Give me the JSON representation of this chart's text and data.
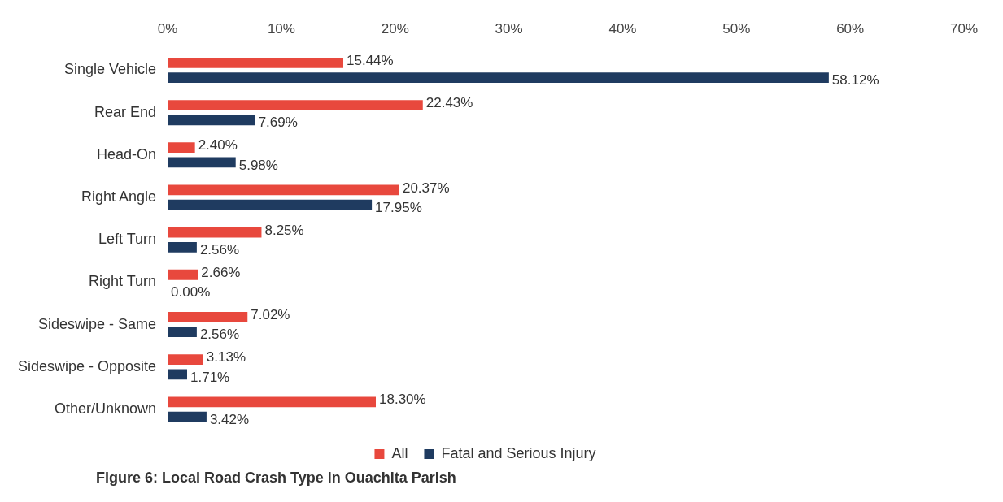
{
  "chart_data": {
    "type": "bar",
    "orientation": "horizontal",
    "categories": [
      "Single Vehicle",
      "Rear End",
      "Head-On",
      "Right Angle",
      "Left Turn",
      "Right Turn",
      "Sideswipe - Same",
      "Sideswipe - Opposite",
      "Other/Unknown"
    ],
    "series": [
      {
        "name": "All",
        "color": "#e8483d",
        "values": [
          15.44,
          22.43,
          2.4,
          20.37,
          8.25,
          2.66,
          7.02,
          3.13,
          18.3
        ],
        "value_labels": [
          "15.44%",
          "22.43%",
          "2.40%",
          "20.37%",
          "8.25%",
          "2.66%",
          "7.02%",
          "3.13%",
          "18.30%"
        ]
      },
      {
        "name": "Fatal and Serious Injury",
        "color": "#1f3b60",
        "values": [
          58.12,
          7.69,
          5.98,
          17.95,
          2.56,
          0,
          2.56,
          1.71,
          3.42
        ],
        "value_labels": [
          "58.12%",
          "7.69%",
          "5.98%",
          "17.95%",
          "2.56%",
          "0.00%",
          "2.56%",
          "1.71%",
          "3.42%"
        ]
      }
    ],
    "xlim": [
      0,
      70
    ],
    "xticks": [
      {
        "value": 0,
        "label": "0%"
      },
      {
        "value": 10,
        "label": "10%"
      },
      {
        "value": 20,
        "label": "20%"
      },
      {
        "value": 30,
        "label": "30%"
      },
      {
        "value": 40,
        "label": "40%"
      },
      {
        "value": 50,
        "label": "50%"
      },
      {
        "value": 60,
        "label": "60%"
      },
      {
        "value": 70,
        "label": "70%"
      }
    ],
    "grid": false,
    "legend": "bottom",
    "annotations": [
      "Figure 6: Local Road Crash Type in Ouachita Parish"
    ]
  }
}
